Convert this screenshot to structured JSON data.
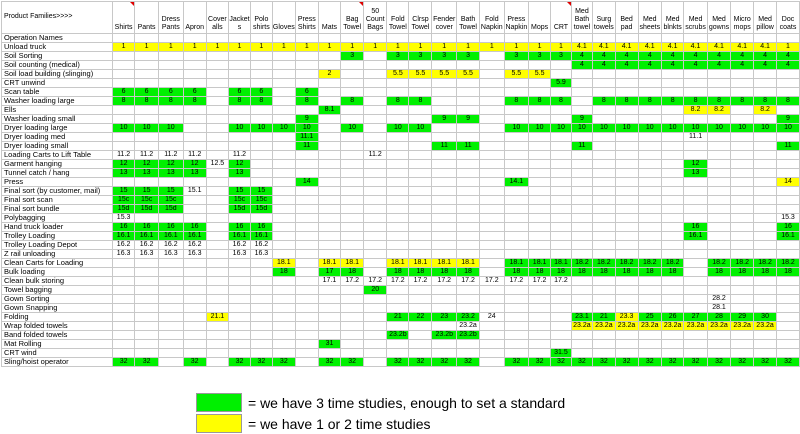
{
  "header_label": "Product Families>>>>",
  "op_names_label": "Operation Names",
  "columns": [
    "Shirts",
    "Pants",
    "Dress Pants",
    "Apron",
    "Cover alls",
    "Jacket s",
    "Polo shirts",
    "Gloves",
    "Press Shirts",
    "Mats",
    "Bag Towel",
    "50 Count Bags",
    "Fold Towel",
    "Clrsp Towel",
    "Fender cover",
    "Bath Towel",
    "Fold Napkin",
    "Press Napkin",
    "Mops",
    "CRT",
    "Med Bath towel",
    "Surg towels",
    "Bed pad",
    "Med sheets",
    "Med blnkts",
    "Med scrubs",
    "Med gowns",
    "Micro mops",
    "Med pillow",
    "Doc coats"
  ],
  "header_marks": [
    0,
    10,
    19
  ],
  "rows": [
    {
      "name": "Unload truck",
      "cells": "1y 1y 1y 1y 1y 1y 1y 1y 1y 1y 1y 1y 1y 1y 1y 1y 1y 1y 1y 1y 4.1y 4.1y 4.1y 4.1y 4.1y 4.1y 4.1y 4.1y 4.1y 1y"
    },
    {
      "name": "Soil Sorting",
      "cells": "_ _ _ _ _ _ _ _ _ _ 3g _ 3g 3g 3g 3g _ 3g 3g 3g 4g 4g 4g 4g 4g 4g 4g 4g 4g 4g"
    },
    {
      "name": "Soil counting (medical)",
      "cells": "_ _ _ _ _ _ _ _ _ _ _ _ _ _ _ _ _ _ _ _ 4g 4g 4g 4g 4g 4g 4g 4g 4g 4g"
    },
    {
      "name": "Soil load building (slinging)",
      "cells": "_ _ _ _ _ _ _ _ _ 2y _ _ 5.5y 5.5y 5.5y 5.5y _ 5.5y 5.5y _ _ _ _ _ _ _ _ _ _ _"
    },
    {
      "name": "CRT unwind",
      "cells": "_ _ _ _ _ _ _ _ _ _ _ _ _ _ _ _ _ _ _ 5.9g _ _ _ _ _ _ _ _ _ _"
    },
    {
      "name": "Scan table",
      "cells": "6g 6g 6g 6g _ 6g 6g _ 6g _ _ _ _ _ _ _ _ _ _ _ _ _ _ _ _ _ _ _ _ _"
    },
    {
      "name": "Washer loading large",
      "cells": "8g 8g 8g 8g _ 8g 8g _ 8g _ 8g _ 8g 8g _ _ _ 8g 8g 8g _ 8g 8g 8g 8g 8g 8g 8g 8g 8g"
    },
    {
      "name": "Ells",
      "cells": "_ _ _ _ _ _ _ _ _ 8.1g _ _ _ _ _ _ _ _ _ _ _ _ _ _ _ 8.2y 8.2y _ 8.2y _"
    },
    {
      "name": "Washer loading small",
      "cells": "_ _ _ _ _ _ _ _ 9g _ _ _ _ _ 9g 9g _ _ _ _ 9g _ _ _ _ _ _ _ _ 9g"
    },
    {
      "name": "Dryer loading large",
      "cells": "10g 10g 10g _ _ 10g 10g 10g 10g _ 10g _ 10g 10g _ _ _ 10g 10g 10g 10g 10g 10g 10g 10g 10g 10g 10g 10g 10g"
    },
    {
      "name": "Dryer loading med",
      "cells": "_ _ _ _ _ _ _ _ 11.1g _ _ _ _ _ _ _ _ _ _ _ _ _ _ _ _ 11.1 _ _ _ _"
    },
    {
      "name": "Dryer loading small",
      "cells": "_ _ _ _ _ _ _ _ 11g _ _ _ _ _ 11g 11g _ _ _ _ 11g _ _ _ _ _ _ _ _ 11g"
    },
    {
      "name": "Loading Carts to Lift Table",
      "cells": "11.2 11.2 11.2 11.2 _ 11.2 _ _ _ _ _ 11.2 _ _ _ _ _ _ _ _ _ _ _ _ _ _ _ _ _ _"
    },
    {
      "name": "Garment hanging",
      "cells": "12g 12g 12g 12g 12.5 12g _ _ _ _ _ _ _ _ _ _ _ _ _ _ _ _ _ _ _ 12g _ _ _ _"
    },
    {
      "name": "Tunnel catch / hang",
      "cells": "13g 13g 13g 13g _ 13g _ _ _ _ _ _ _ _ _ _ _ _ _ _ _ _ _ _ _ 13g _ _ _ _"
    },
    {
      "name": "Press",
      "cells": "_ _ _ _ _ _ _ _ 14g _ _ _ _ _ _ _ _ 14.1g _ _ _ _ _ _ _ _ _ _ _ 14y"
    },
    {
      "name": "Final sort (by customer, mail)",
      "cells": "15g 15g 15g 15.1 _ 15g 15g _ _ _ _ _ _ _ _ _ _ _ _ _ _ _ _ _ _ _ _ _ _ _"
    },
    {
      "name": "Final sort scan",
      "cells": "15cg 15cg 15cg _ _ 15cg 15cg _ _ _ _ _ _ _ _ _ _ _ _ _ _ _ _ _ _ _ _ _ _ _"
    },
    {
      "name": "Final sort bundle",
      "cells": "15dg 15dg 15dg _ _ 15dg 15dg _ _ _ _ _ _ _ _ _ _ _ _ _ _ _ _ _ _ _ _ _ _ _"
    },
    {
      "name": "Polybagging",
      "cells": "15.3 _ _ _ _ _ _ _ _ _ _ _ _ _ _ _ _ _ _ _ _ _ _ _ _ _ _ _ _ 15.3"
    },
    {
      "name": "Hand truck loader",
      "cells": "16g 16g 16g 16g _ 16g 16g _ _ _ _ _ _ _ _ _ _ _ _ _ _ _ _ _ _ 16g _ _ _ 16g"
    },
    {
      "name": "Trolley Loading",
      "cells": "16.1g 16.1g 16.1g 16.1g _ 16.1g 16.1g _ _ _ _ _ _ _ _ _ _ _ _ _ _ _ _ _ _ 16.1g _ _ _ 16.1g"
    },
    {
      "name": "Trolley Loading Depot",
      "cells": "16.2 16.2 16.2 16.2 _ 16.2 16.2 _ _ _ _ _ _ _ _ _ _ _ _ _ _ _ _ _ _ _ _ _ _ _"
    },
    {
      "name": "Z rail unloading",
      "cells": "16.3 16.3 16.3 16.3 _ 16.3 16.3 _ _ _ _ _ _ _ _ _ _ _ _ _ _ _ _ _ _ _ _ _ _ _"
    },
    {
      "name": "Clean Carts for Loading",
      "cells": "_ _ _ _ _ _ _ 18.1y _ 18.1y 18.1y _ 18.1y 18.1y 18.1y 18.1y _ 18.1g 18.1g 18.1g 18.2g 18.2g 18.2g 18.2g 18.2g _ 18.2g 18.2g 18.2g 18.2g"
    },
    {
      "name": "Bulk loading",
      "cells": "_ _ _ _ _ _ _ 18g _ 17g 18g _ 18g 18g 18g 18g _ 18g 18g 18g 18g 18g 18g 18g 18g _ 18g 18g 18g 18g"
    },
    {
      "name": "Clean bulk storing",
      "cells": "_ _ _ _ _ _ _ _ _ 17.1 17.2 17.2 17.2 17.2 17.2 17.2 17.2 17.2 17.2 17.2 _ _ _ _ _ _ _ _ _ _"
    },
    {
      "name": "Towel bagging",
      "cells": "_ _ _ _ _ _ _ _ _ _ _ 20g _ _ _ _ _ _ _ _ _ _ _ _ _ _ _ _ _ _"
    },
    {
      "name": "Gown Sorting",
      "cells": "_ _ _ _ _ _ _ _ _ _ _ _ _ _ _ _ _ _ _ _ _ _ _ _ _ _ 28.2 _ _ _"
    },
    {
      "name": "Gown Snapping",
      "cells": "_ _ _ _ _ _ _ _ _ _ _ _ _ _ _ _ _ _ _ _ _ _ _ _ _ _ 28.1 _ _ _"
    },
    {
      "name": "Folding",
      "cells": "_ _ _ _ 21.1y _ _ _ _ _ _ _ 21g 22g 23g 23.2g 24 _ _ _ 23.1g 21g 23.3y 25g 26g 27g 28g 29g 30g _"
    },
    {
      "name": "Wrap folded towels",
      "cells": "_ _ _ _ _ _ _ _ _ _ _ _ _ _ _ 23.2a _ _ _ _ 23.2ay 23.2ay 23.2ay 23.2ay 23.2ay 23.2ay 23.2ay 23.2ay 23.2ay _"
    },
    {
      "name": "Band folded towels",
      "cells": "_ _ _ _ _ _ _ _ _ _ _ _ 23.2bg _ 23.2bg 23.2bg _ _ _ _ _ _ _ _ _ _ _ _ _ _"
    },
    {
      "name": "Mat Rolling",
      "cells": "_ _ _ _ _ _ _ _ _ 31g _ _ _ _ _ _ _ _ _ _ _ _ _ _ _ _ _ _ _ _"
    },
    {
      "name": "CRT wind",
      "cells": "_ _ _ _ _ _ _ _ _ _ _ _ _ _ _ _ _ _ _ 31.5g _ _ _ _ _ _ _ _ _ _"
    },
    {
      "name": "Sling/hoist operator",
      "cells": "32g 32g _ 32g _ 32g 32g 32g _ 32g 32g _ 32g 32g 32g 32g _ 32g 32g 32g 32g 32g 32g 32g 32g 32g 32g 32g 32g 32g"
    }
  ],
  "legend": [
    {
      "color": "green",
      "text": "= we have 3 time studies, enough to set a standard"
    },
    {
      "color": "yellow",
      "text": "= we have 1 or 2 time studies"
    }
  ],
  "colors": {
    "green": "#00f000",
    "yellow": "#ffff00",
    "grid": "#c8c8c8",
    "comment_mark": "#e00000"
  }
}
